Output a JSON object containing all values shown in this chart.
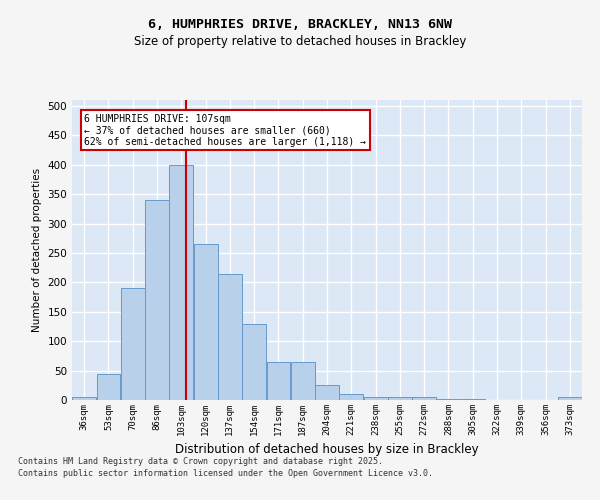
{
  "title1": "6, HUMPHRIES DRIVE, BRACKLEY, NN13 6NW",
  "title2": "Size of property relative to detached houses in Brackley",
  "xlabel": "Distribution of detached houses by size in Brackley",
  "ylabel": "Number of detached properties",
  "bar_color": "#b8d0ea",
  "bar_edge_color": "#6699cc",
  "bg_color": "#dce8f5",
  "grid_color": "#ffffff",
  "vline_color": "#cc0000",
  "annotation_box_color": "#cc0000",
  "annotation_lines": [
    "6 HUMPHRIES DRIVE: 107sqm",
    "← 37% of detached houses are smaller (660)",
    "62% of semi-detached houses are larger (1,118) →"
  ],
  "categories": [
    "36sqm",
    "53sqm",
    "70sqm",
    "86sqm",
    "103sqm",
    "120sqm",
    "137sqm",
    "154sqm",
    "171sqm",
    "187sqm",
    "204sqm",
    "221sqm",
    "238sqm",
    "255sqm",
    "272sqm",
    "288sqm",
    "305sqm",
    "322sqm",
    "339sqm",
    "356sqm",
    "373sqm"
  ],
  "bin_left": [
    27,
    44,
    61,
    78,
    95,
    112,
    129,
    146,
    163,
    180,
    197,
    214,
    231,
    248,
    265,
    282,
    299,
    316,
    333,
    350,
    367
  ],
  "bin_right": [
    44,
    61,
    78,
    95,
    112,
    129,
    146,
    163,
    180,
    197,
    214,
    231,
    248,
    265,
    282,
    299,
    316,
    333,
    350,
    367,
    384
  ],
  "values": [
    5,
    45,
    190,
    340,
    400,
    265,
    215,
    130,
    65,
    65,
    25,
    10,
    5,
    5,
    5,
    2,
    2,
    0,
    0,
    0,
    5
  ],
  "vline_x": 107,
  "xlim": [
    27,
    384
  ],
  "ylim": [
    0,
    510
  ],
  "yticks": [
    0,
    50,
    100,
    150,
    200,
    250,
    300,
    350,
    400,
    450,
    500
  ],
  "footer1": "Contains HM Land Registry data © Crown copyright and database right 2025.",
  "footer2": "Contains public sector information licensed under the Open Government Licence v3.0.",
  "fig_bg": "#f5f5f5"
}
